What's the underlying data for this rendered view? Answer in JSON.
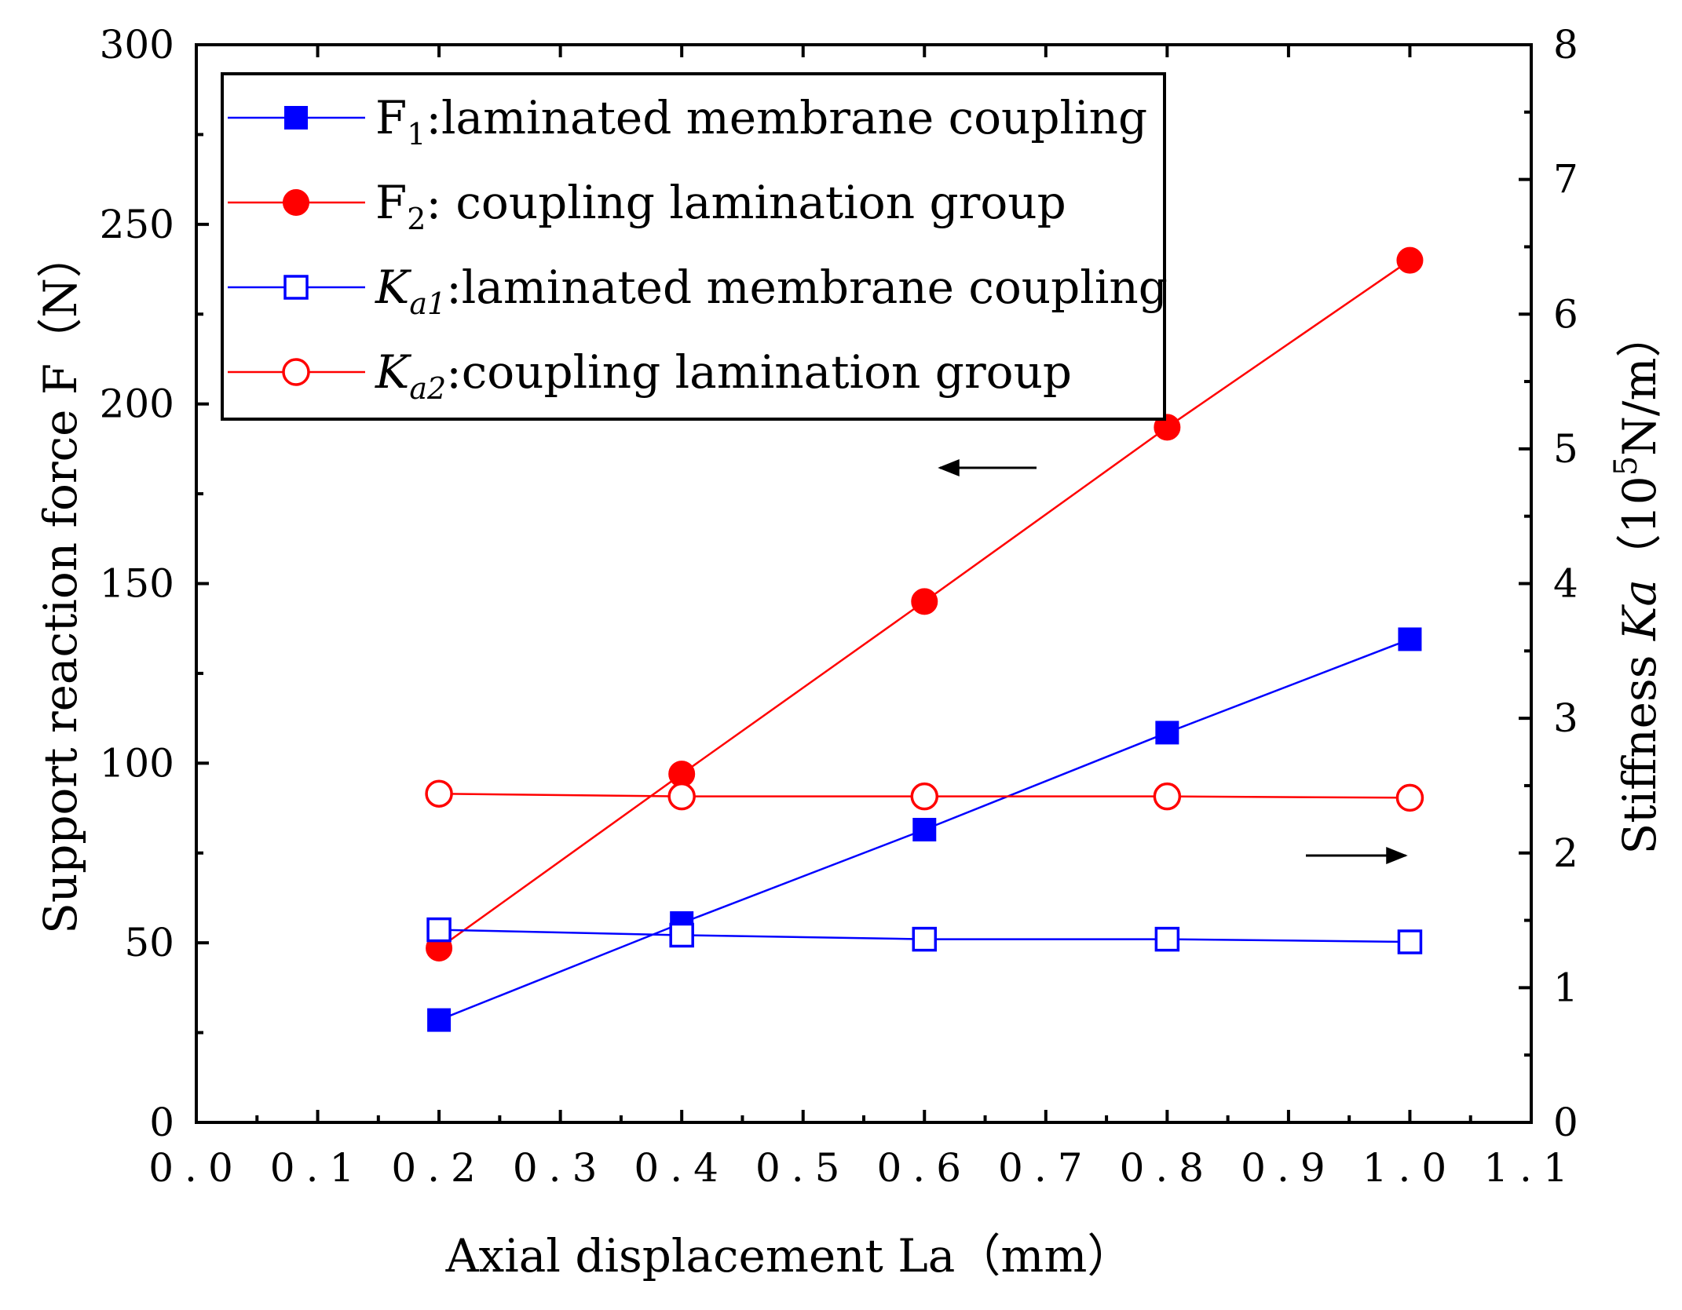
{
  "chart_data": {
    "type": "line",
    "xlabel": "Axial displacement La（mm）",
    "ylabel_left": "Support reaction force F（N）",
    "ylabel_right_prefix": "Stiffness ",
    "ylabel_right_italic": "Ka",
    "ylabel_right_unit_open": "（10",
    "ylabel_right_unit_exp": "5",
    "ylabel_right_unit_close": "N/m）",
    "xlim": [
      0.0,
      1.1
    ],
    "ylim_left": [
      0,
      300
    ],
    "ylim_right": [
      0,
      8
    ],
    "x_ticks": [
      "0.0",
      "0.1",
      "0.2",
      "0.3",
      "0.4",
      "0.5",
      "0.6",
      "0.7",
      "0.8",
      "0.9",
      "1.0",
      "1.1"
    ],
    "y_left_ticks": [
      "0",
      "50",
      "100",
      "150",
      "200",
      "250",
      "300"
    ],
    "y_right_ticks": [
      "0",
      "1",
      "2",
      "3",
      "4",
      "5",
      "6",
      "7",
      "8"
    ],
    "legend_position": "top-left",
    "grid": false,
    "series": [
      {
        "name": "F1:laminated membrane coupling",
        "legend_main": "F",
        "legend_sub": "1",
        "legend_rest": ":laminated membrane coupling",
        "legend_italic": false,
        "axis": "left",
        "color": "#0000ff",
        "marker": "square-filled",
        "x": [
          0.2,
          0.4,
          0.6,
          0.8,
          1.0
        ],
        "values": [
          28.5,
          55.5,
          81.5,
          108.5,
          134.5
        ]
      },
      {
        "name": "F2: coupling lamination group",
        "legend_main": "F",
        "legend_sub": "2",
        "legend_rest": ": coupling lamination group",
        "legend_italic": false,
        "axis": "left",
        "color": "#ff0000",
        "marker": "circle-filled",
        "x": [
          0.2,
          0.4,
          0.6,
          0.8,
          1.0
        ],
        "values": [
          48.5,
          97,
          145,
          193.5,
          240
        ]
      },
      {
        "name": "Ka1:laminated membrane coupling",
        "legend_main": "K",
        "legend_sub": "a1",
        "legend_rest": ":laminated membrane coupling",
        "legend_italic": true,
        "axis": "right",
        "color": "#0000ff",
        "marker": "square-open",
        "x": [
          0.2,
          0.4,
          0.6,
          0.8,
          1.0
        ],
        "values": [
          1.43,
          1.39,
          1.36,
          1.36,
          1.34
        ]
      },
      {
        "name": "Ka2:coupling lamination group",
        "legend_main": "K",
        "legend_sub": "a2",
        "legend_rest": ":coupling lamination group",
        "legend_italic": true,
        "axis": "right",
        "color": "#ff0000",
        "marker": "circle-open",
        "x": [
          0.2,
          0.4,
          0.6,
          0.8,
          1.0
        ],
        "values": [
          2.44,
          2.42,
          2.42,
          2.42,
          2.41
        ]
      }
    ],
    "annotations": [
      {
        "type": "arrow",
        "direction": "left",
        "points_to": "left axis"
      },
      {
        "type": "arrow",
        "direction": "right",
        "points_to": "right axis"
      }
    ]
  }
}
